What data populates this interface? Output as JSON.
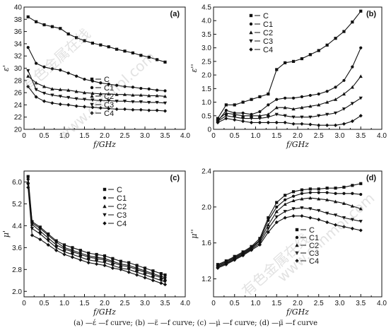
{
  "caption": "(a) —έ —f curve; (b) —ε̈ —f curve; (c) —μ̇ —f curve; (d) —μ̈ —f curve",
  "watermarks": [
    "有色金属在线",
    "www.cnnmol.com"
  ],
  "chart_data": [
    {
      "type": "line",
      "panel_label": "(a)",
      "xlabel": "f/GHz",
      "ylabel": "ε'",
      "xlim": [
        0,
        4.0
      ],
      "ylim": [
        20,
        40
      ],
      "xticks": [
        "0",
        "0.5",
        "1.0",
        "1.5",
        "2.0",
        "2.5",
        "3.0",
        "3.5",
        "4.0"
      ],
      "yticks": [
        "20",
        "22",
        "24",
        "26",
        "28",
        "30",
        "32",
        "34",
        "36",
        "38",
        "40"
      ],
      "legend": "center-left",
      "grid": false,
      "x": [
        0.1,
        0.3,
        0.5,
        0.7,
        0.9,
        1.1,
        1.3,
        1.5,
        1.7,
        1.9,
        2.1,
        2.3,
        2.5,
        2.7,
        2.9,
        3.1,
        3.3,
        3.5
      ],
      "series": [
        {
          "name": "C",
          "marker": "square",
          "values": [
            38.4,
            37.6,
            37.1,
            36.8,
            36.5,
            35.6,
            35.0,
            34.5,
            34.1,
            33.8,
            33.5,
            33.1,
            32.8,
            32.5,
            32.1,
            31.8,
            31.4,
            31.0
          ]
        },
        {
          "name": "C1",
          "marker": "circle",
          "values": [
            33.4,
            30.8,
            30.2,
            29.9,
            29.7,
            29.2,
            28.7,
            28.2,
            27.9,
            27.6,
            27.4,
            27.2,
            27.0,
            26.9,
            26.7,
            26.6,
            26.4,
            26.3
          ]
        },
        {
          "name": "C2",
          "marker": "triangle-up",
          "values": [
            28.7,
            27.6,
            27.0,
            26.6,
            26.5,
            26.4,
            26.2,
            26.0,
            25.9,
            25.8,
            25.8,
            25.7,
            25.7,
            25.6,
            25.6,
            25.5,
            25.5,
            25.4
          ]
        },
        {
          "name": "C3",
          "marker": "triangle-down",
          "values": [
            29.6,
            26.5,
            25.9,
            25.6,
            25.4,
            25.2,
            25.0,
            24.9,
            24.8,
            24.7,
            24.7,
            24.6,
            24.6,
            24.5,
            24.5,
            24.4,
            24.4,
            24.3
          ]
        },
        {
          "name": "C4",
          "marker": "diamond",
          "values": [
            27.0,
            25.3,
            24.6,
            24.3,
            24.1,
            24.0,
            23.8,
            23.7,
            23.6,
            23.5,
            23.4,
            23.3,
            23.3,
            23.2,
            23.2,
            23.1,
            23.1,
            23.0
          ]
        }
      ]
    },
    {
      "type": "line",
      "panel_label": "(b)",
      "xlabel": "f/GHz",
      "ylabel": "ε''",
      "xlim": [
        0,
        4.0
      ],
      "ylim": [
        0,
        4.5
      ],
      "xticks": [
        "0",
        "0.5",
        "1.0",
        "1.5",
        "2.0",
        "2.5",
        "3.0",
        "3.5",
        "4.0"
      ],
      "yticks": [
        "0",
        "0.5",
        "1.0",
        "1.5",
        "2.0",
        "2.5",
        "3.0",
        "3.5",
        "4.0",
        "4.5"
      ],
      "legend": "top-left",
      "grid": false,
      "x": [
        0.1,
        0.3,
        0.5,
        0.7,
        0.9,
        1.1,
        1.3,
        1.5,
        1.7,
        1.9,
        2.1,
        2.3,
        2.5,
        2.7,
        2.9,
        3.1,
        3.3,
        3.5
      ],
      "series": [
        {
          "name": "C",
          "marker": "square",
          "values": [
            0.4,
            0.9,
            0.9,
            1.0,
            1.1,
            1.2,
            1.3,
            2.2,
            2.45,
            2.5,
            2.6,
            2.75,
            2.9,
            3.1,
            3.35,
            3.6,
            3.95,
            4.35
          ]
        },
        {
          "name": "C1",
          "marker": "circle",
          "values": [
            0.3,
            0.7,
            0.6,
            0.6,
            0.55,
            0.65,
            0.9,
            1.1,
            1.15,
            1.15,
            1.2,
            1.25,
            1.3,
            1.4,
            1.55,
            1.8,
            2.3,
            3.0
          ]
        },
        {
          "name": "C2",
          "marker": "triangle-up",
          "values": [
            0.35,
            0.6,
            0.55,
            0.5,
            0.5,
            0.5,
            0.55,
            0.8,
            0.8,
            0.75,
            0.8,
            0.85,
            0.9,
            1.0,
            1.1,
            1.3,
            1.55,
            1.95
          ]
        },
        {
          "name": "C3",
          "marker": "triangle-down",
          "values": [
            0.3,
            0.5,
            0.45,
            0.4,
            0.4,
            0.4,
            0.45,
            0.55,
            0.5,
            0.45,
            0.45,
            0.45,
            0.5,
            0.55,
            0.6,
            0.75,
            0.95,
            1.15
          ]
        },
        {
          "name": "C4",
          "marker": "diamond",
          "values": [
            0.25,
            0.4,
            0.35,
            0.3,
            0.25,
            0.25,
            0.25,
            0.25,
            0.25,
            0.2,
            0.2,
            0.18,
            0.15,
            0.15,
            0.15,
            0.2,
            0.3,
            0.5
          ]
        }
      ]
    },
    {
      "type": "line",
      "panel_label": "(c)",
      "xlabel": "f/GHz",
      "ylabel": "μ'",
      "xlim": [
        0,
        4.0
      ],
      "ylim": [
        1.8,
        6.4
      ],
      "xticks": [
        "0",
        "0.5",
        "1.0",
        "1.5",
        "2.0",
        "2.5",
        "3.0",
        "3.5",
        "4.0"
      ],
      "yticks": [
        "2.0",
        "2.8",
        "3.6",
        "4.4",
        "5.2",
        "6.0"
      ],
      "legend": "top-right",
      "grid": false,
      "x": [
        0.1,
        0.2,
        0.4,
        0.6,
        0.8,
        1.0,
        1.2,
        1.4,
        1.6,
        1.8,
        2.0,
        2.2,
        2.4,
        2.6,
        2.8,
        3.0,
        3.2,
        3.4,
        3.5
      ],
      "series": [
        {
          "name": "C",
          "marker": "square",
          "values": [
            6.2,
            4.55,
            4.35,
            4.1,
            3.85,
            3.7,
            3.6,
            3.5,
            3.4,
            3.35,
            3.3,
            3.2,
            3.1,
            3.05,
            2.95,
            2.85,
            2.75,
            2.65,
            2.6
          ]
        },
        {
          "name": "C1",
          "marker": "circle",
          "values": [
            6.1,
            4.5,
            4.3,
            4.05,
            3.8,
            3.6,
            3.5,
            3.4,
            3.3,
            3.25,
            3.2,
            3.1,
            3.0,
            2.95,
            2.85,
            2.75,
            2.65,
            2.55,
            2.5
          ]
        },
        {
          "name": "C2",
          "marker": "triangle-up",
          "values": [
            6.0,
            4.45,
            4.2,
            3.95,
            3.7,
            3.55,
            3.45,
            3.35,
            3.25,
            3.2,
            3.15,
            3.05,
            2.95,
            2.9,
            2.8,
            2.7,
            2.6,
            2.5,
            2.45
          ]
        },
        {
          "name": "C3",
          "marker": "triangle-down",
          "values": [
            5.9,
            4.3,
            4.1,
            3.85,
            3.6,
            3.45,
            3.35,
            3.25,
            3.15,
            3.1,
            3.05,
            2.95,
            2.85,
            2.8,
            2.7,
            2.6,
            2.5,
            2.4,
            2.35
          ]
        },
        {
          "name": "C4",
          "marker": "diamond",
          "values": [
            5.8,
            4.05,
            3.9,
            3.7,
            3.5,
            3.35,
            3.25,
            3.15,
            3.05,
            3.0,
            2.95,
            2.85,
            2.8,
            2.7,
            2.6,
            2.5,
            2.4,
            2.3,
            2.25
          ]
        }
      ]
    },
    {
      "type": "line",
      "panel_label": "(d)",
      "xlabel": "f/GHz",
      "ylabel": "μ''",
      "xlim": [
        0,
        4.0
      ],
      "ylim": [
        1.0,
        2.4
      ],
      "xticks": [
        "0",
        "0.5",
        "1.0",
        "1.5",
        "2.0",
        "2.5",
        "3.0",
        "3.5",
        "4.0"
      ],
      "yticks": [
        "1.2",
        "1.6",
        "2.0",
        "2.4"
      ],
      "legend": "bottom-center",
      "grid": false,
      "x": [
        0.1,
        0.3,
        0.5,
        0.7,
        0.9,
        1.1,
        1.3,
        1.5,
        1.7,
        1.9,
        2.1,
        2.3,
        2.5,
        2.7,
        2.9,
        3.1,
        3.3,
        3.5
      ],
      "series": [
        {
          "name": "C",
          "marker": "square",
          "values": [
            1.36,
            1.4,
            1.45,
            1.5,
            1.56,
            1.65,
            1.88,
            2.05,
            2.13,
            2.17,
            2.19,
            2.2,
            2.2,
            2.21,
            2.21,
            2.22,
            2.24,
            2.26
          ]
        },
        {
          "name": "C1",
          "marker": "circle",
          "values": [
            1.35,
            1.39,
            1.44,
            1.49,
            1.55,
            1.63,
            1.85,
            2.0,
            2.08,
            2.12,
            2.15,
            2.16,
            2.16,
            2.16,
            2.15,
            2.15,
            2.15,
            2.14
          ]
        },
        {
          "name": "C2",
          "marker": "triangle-up",
          "values": [
            1.34,
            1.38,
            1.43,
            1.48,
            1.54,
            1.62,
            1.8,
            1.95,
            2.03,
            2.07,
            2.09,
            2.1,
            2.09,
            2.08,
            2.06,
            2.04,
            2.01,
            1.98
          ]
        },
        {
          "name": "C3",
          "marker": "triangle-down",
          "values": [
            1.33,
            1.37,
            1.42,
            1.47,
            1.53,
            1.6,
            1.76,
            1.89,
            1.95,
            1.98,
            1.99,
            1.98,
            1.96,
            1.93,
            1.91,
            1.88,
            1.86,
            1.84
          ]
        },
        {
          "name": "C4",
          "marker": "diamond",
          "values": [
            1.32,
            1.36,
            1.41,
            1.46,
            1.52,
            1.58,
            1.72,
            1.83,
            1.88,
            1.9,
            1.9,
            1.88,
            1.86,
            1.83,
            1.8,
            1.78,
            1.76,
            1.74
          ]
        }
      ]
    }
  ]
}
